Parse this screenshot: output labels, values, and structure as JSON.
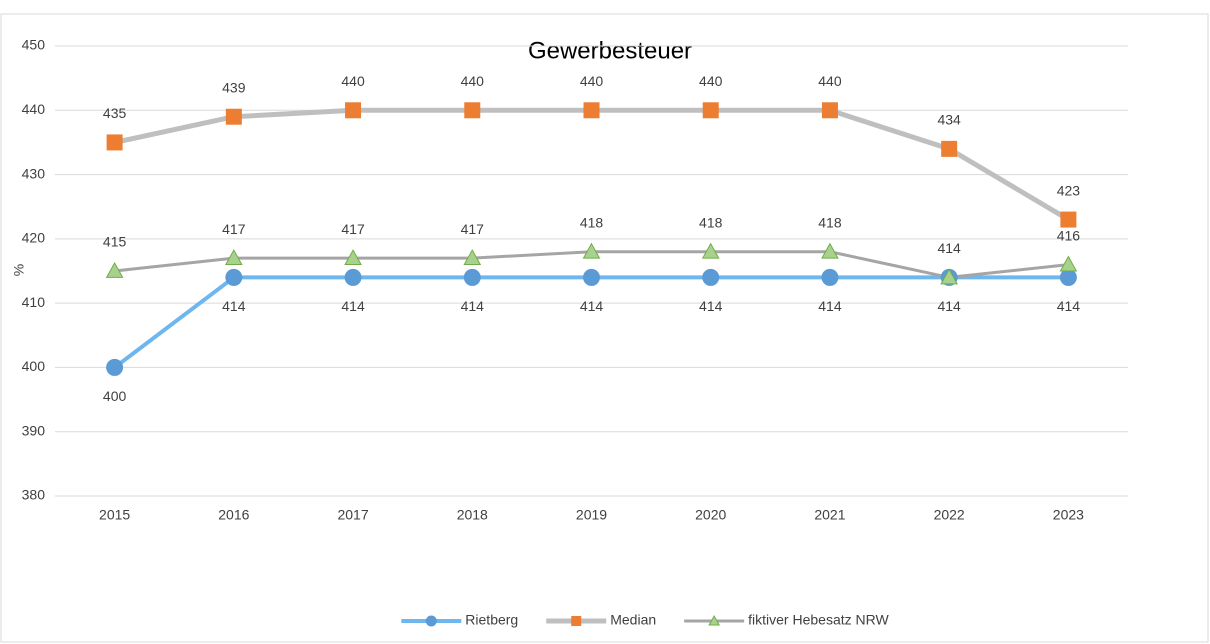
{
  "chart_data": {
    "type": "line",
    "title": "Gewerbesteuer",
    "y_label": "%",
    "categories": [
      "2015",
      "2016",
      "2017",
      "2018",
      "2019",
      "2020",
      "2021",
      "2022",
      "2023"
    ],
    "series": [
      {
        "name": "Rietberg",
        "color": "#6db6ee",
        "marker": "circle",
        "marker_color": "#5b9bd5",
        "label_position": "below",
        "values": [
          400,
          414,
          414,
          414,
          414,
          414,
          414,
          414,
          414
        ]
      },
      {
        "name": "Median",
        "color": "#bfbfbf",
        "marker": "square",
        "marker_color": "#ed7d31",
        "label_position": "above",
        "values": [
          435,
          439,
          440,
          440,
          440,
          440,
          440,
          434,
          423
        ]
      },
      {
        "name": "fiktiver Hebesatz NRW",
        "color": "#a5a5a5",
        "marker": "triangle",
        "marker_color": "#a9d18e",
        "label_position": "above",
        "values": [
          415,
          417,
          417,
          417,
          418,
          418,
          418,
          414,
          416
        ]
      }
    ],
    "ylim": [
      380,
      450
    ],
    "yticks": [
      380,
      390,
      400,
      410,
      420,
      430,
      440,
      450
    ],
    "grid": true,
    "legend": "bottom"
  }
}
